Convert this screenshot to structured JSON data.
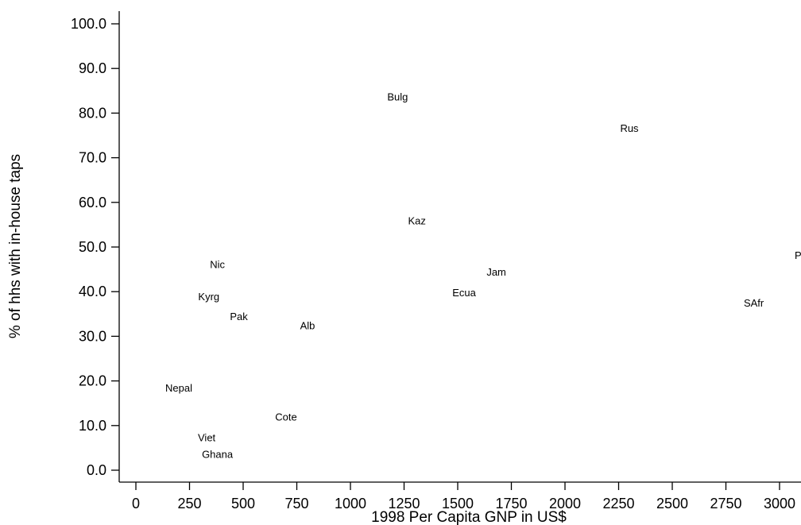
{
  "chart_data": {
    "type": "scatter",
    "marker": "label-only",
    "xlabel": "1998 Per Capita GNP in US$",
    "ylabel": "% of hhs with in-house taps",
    "xlim": [
      0,
      3000
    ],
    "ylim": [
      0,
      100
    ],
    "x_ticks": [
      0,
      250,
      500,
      750,
      1000,
      1250,
      1500,
      1750,
      2000,
      2250,
      2500,
      2750,
      3000
    ],
    "y_ticks": [
      0,
      10,
      20,
      30,
      40,
      50,
      60,
      70,
      80,
      90,
      100
    ],
    "y_tick_labels": [
      "0.0",
      "10.0",
      "20.0",
      "30.0",
      "40.0",
      "50.0",
      "60.0",
      "70.0",
      "80.0",
      "90.0",
      "100.0"
    ],
    "grid": false,
    "points": [
      {
        "label": "Bulg",
        "x": 1220,
        "y": 83.5
      },
      {
        "label": "Rus",
        "x": 2300,
        "y": 76.5
      },
      {
        "label": "Kaz",
        "x": 1310,
        "y": 55.8
      },
      {
        "label": "Pa",
        "x": 3100,
        "y": 48.0
      },
      {
        "label": "Nic",
        "x": 380,
        "y": 46.0
      },
      {
        "label": "Jam",
        "x": 1680,
        "y": 44.3
      },
      {
        "label": "Ecua",
        "x": 1530,
        "y": 39.7
      },
      {
        "label": "Kyrg",
        "x": 340,
        "y": 38.8
      },
      {
        "label": "SAfr",
        "x": 2880,
        "y": 37.4
      },
      {
        "label": "Pak",
        "x": 480,
        "y": 34.3
      },
      {
        "label": "Alb",
        "x": 800,
        "y": 32.3
      },
      {
        "label": "Nepal",
        "x": 200,
        "y": 18.3
      },
      {
        "label": "Cote",
        "x": 700,
        "y": 11.8
      },
      {
        "label": "Viet",
        "x": 330,
        "y": 7.2
      },
      {
        "label": "Ghana",
        "x": 380,
        "y": 3.5
      }
    ]
  }
}
